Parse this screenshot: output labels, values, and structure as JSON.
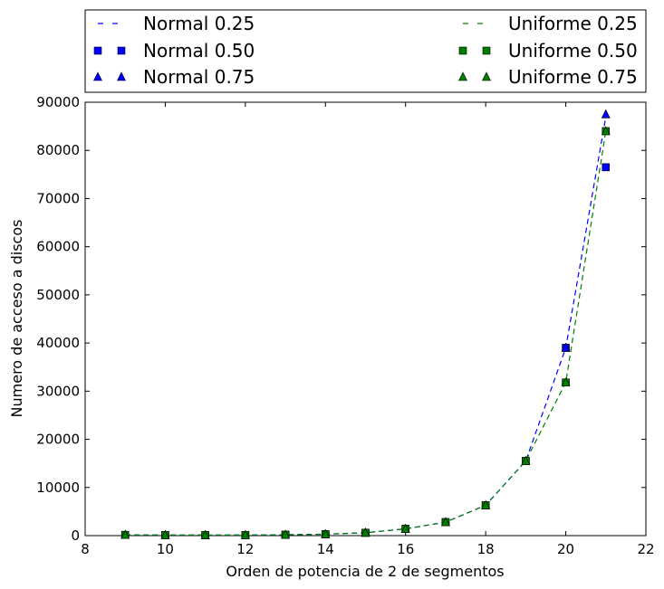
{
  "chart_data": {
    "type": "line",
    "xlabel": "Orden de potencia de 2 de segmentos",
    "ylabel": "Numero de acceso a discos",
    "xlim": [
      8,
      22
    ],
    "ylim": [
      0,
      90000
    ],
    "xticks": [
      8,
      10,
      12,
      14,
      16,
      18,
      20,
      22
    ],
    "yticks": [
      0,
      10000,
      20000,
      30000,
      40000,
      50000,
      60000,
      70000,
      80000,
      90000
    ],
    "grid": false,
    "legend_placement": "top, outside plot, two columns",
    "x": [
      9,
      10,
      11,
      12,
      13,
      14,
      15,
      16,
      17,
      18,
      19,
      20,
      21
    ],
    "series": [
      {
        "name": "Normal 0.25",
        "marker": "dashed-line",
        "color": "#0000ff",
        "values": [
          150,
          120,
          110,
          120,
          180,
          300,
          600,
          1400,
          2800,
          6300,
          15500,
          39000,
          87000
        ]
      },
      {
        "name": "Normal 0.50",
        "marker": "square",
        "color": "#0000ff",
        "values": [
          150,
          120,
          110,
          120,
          180,
          300,
          600,
          1400,
          2800,
          6300,
          15500,
          39000,
          76500
        ]
      },
      {
        "name": "Normal 0.75",
        "marker": "triangle",
        "color": "#0000ff",
        "values": [
          150,
          120,
          110,
          120,
          180,
          300,
          600,
          1400,
          2800,
          6300,
          15500,
          39000,
          87500
        ]
      },
      {
        "name": "Uniforme 0.25",
        "marker": "dashed-line",
        "color": "#008000",
        "values": [
          150,
          120,
          110,
          120,
          180,
          300,
          600,
          1400,
          2800,
          6300,
          15500,
          31800,
          84000
        ]
      },
      {
        "name": "Uniforme 0.50",
        "marker": "square",
        "color": "#008000",
        "values": [
          150,
          120,
          110,
          120,
          180,
          300,
          600,
          1400,
          2800,
          6300,
          15500,
          31800,
          84000
        ]
      },
      {
        "name": "Uniforme 0.75",
        "marker": "triangle",
        "color": "#008000",
        "values": [
          150,
          120,
          110,
          120,
          180,
          300,
          600,
          1400,
          2800,
          6300,
          15500,
          31800,
          84000
        ]
      }
    ]
  }
}
